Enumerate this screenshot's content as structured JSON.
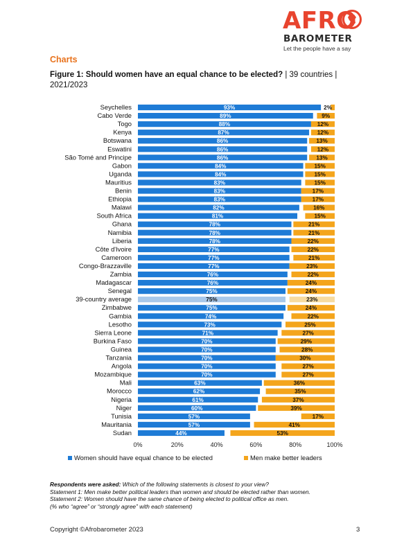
{
  "logo": {
    "brand": "AFRO",
    "brand2": "BAROMETER",
    "tagline": "Let the people have a say"
  },
  "section_heading": "Charts",
  "figure": {
    "title_bold": "Figure 1: Should women have an equal chance to be elected?",
    "title_rest": " | 39 countries | 2021/2023"
  },
  "colors": {
    "women": "#1e7bd6",
    "men": "#f4a51c",
    "avg_women": "#a8c8ea",
    "avg_men": "#f7dba0"
  },
  "chart_data": {
    "type": "bar",
    "orientation": "horizontal",
    "stacked": true,
    "categories": [
      "Seychelles",
      "Cabo Verde",
      "Togo",
      "Kenya",
      "Botswana",
      "Eswatini",
      "São Tomé and Principe",
      "Gabon",
      "Uganda",
      "Mauritius",
      "Benin",
      "Ethiopia",
      "Malawi",
      "South Africa",
      "Ghana",
      "Namibia",
      "Liberia",
      "Côte d'Ivoire",
      "Cameroon",
      "Congo-Brazzaville",
      "Zambia",
      "Madagascar",
      "Senegal",
      "39-country average",
      "Zimbabwe",
      "Gambia",
      "Lesotho",
      "Sierra Leone",
      "Burkina Faso",
      "Guinea",
      "Tanzania",
      "Angola",
      "Mozambique",
      "Mali",
      "Morocco",
      "Nigeria",
      "Niger",
      "Tunisia",
      "Mauritania",
      "Sudan"
    ],
    "series": [
      {
        "name": "Women should have equal chance to be elected",
        "color": "#1e7bd6",
        "values": [
          93,
          89,
          88,
          87,
          86,
          86,
          86,
          84,
          84,
          83,
          83,
          83,
          82,
          81,
          78,
          78,
          78,
          77,
          77,
          77,
          76,
          76,
          75,
          75,
          75,
          74,
          73,
          71,
          70,
          70,
          70,
          70,
          70,
          63,
          62,
          61,
          60,
          57,
          57,
          44
        ]
      },
      {
        "name": "Men make better leaders",
        "color": "#f4a51c",
        "values": [
          2,
          9,
          12,
          12,
          13,
          12,
          13,
          15,
          15,
          15,
          17,
          17,
          16,
          15,
          21,
          21,
          22,
          22,
          21,
          23,
          22,
          24,
          24,
          23,
          24,
          22,
          25,
          27,
          29,
          28,
          30,
          27,
          27,
          36,
          35,
          37,
          39,
          17,
          41,
          53
        ]
      }
    ],
    "value_labels": {
      "women": [
        "93%",
        "89%",
        "88%",
        "87%",
        "86%",
        "86%",
        "86%",
        "84%",
        "84%",
        "83%",
        "83%",
        "83%",
        "82%",
        "81%",
        "78%",
        "78%",
        "78%",
        "77%",
        "77%",
        "77%",
        "76%",
        "76%",
        "75%",
        "75%",
        "75%",
        "74%",
        "73%",
        "71%",
        "70%",
        "70%",
        "70%",
        "70%",
        "70%",
        "63%",
        "62%",
        "61%",
        "60%",
        "57%",
        "57%",
        "44%"
      ],
      "men": [
        "2%",
        "9%",
        "12%",
        "12%",
        "13%",
        "12%",
        "13%",
        "15%",
        "15%",
        "15%",
        "17%",
        "17%",
        "16%",
        "15%",
        "21%",
        "21%",
        "22%",
        "22%",
        "21%",
        "23%",
        "22%",
        "24%",
        "24%",
        "23%",
        "24%",
        "22%",
        "25%",
        "27%",
        "29%",
        "28%",
        "30%",
        "27%",
        "27%",
        "36%",
        "35%",
        "37%",
        "39%",
        "17%",
        "41%",
        "53%"
      ]
    },
    "average_index": 23,
    "xticks": [
      "0%",
      "20%",
      "40%",
      "60%",
      "80%",
      "100%"
    ],
    "xlim": [
      0,
      100
    ],
    "legend_position": "bottom"
  },
  "footnote": {
    "asked_label": "Respondents were asked:",
    "asked_text": " Which of the following statements is closest to your view?",
    "s1": "Statement 1: Men make better political leaders than women and should be elected rather than women.",
    "s2": "Statement 2: Women should have the same chance of being elected to political office as men.",
    "s3": "(% who “agree” or “strongly agree” with each statement)"
  },
  "copyright": "Copyright ©Afrobarometer 2023",
  "page_number": "3"
}
